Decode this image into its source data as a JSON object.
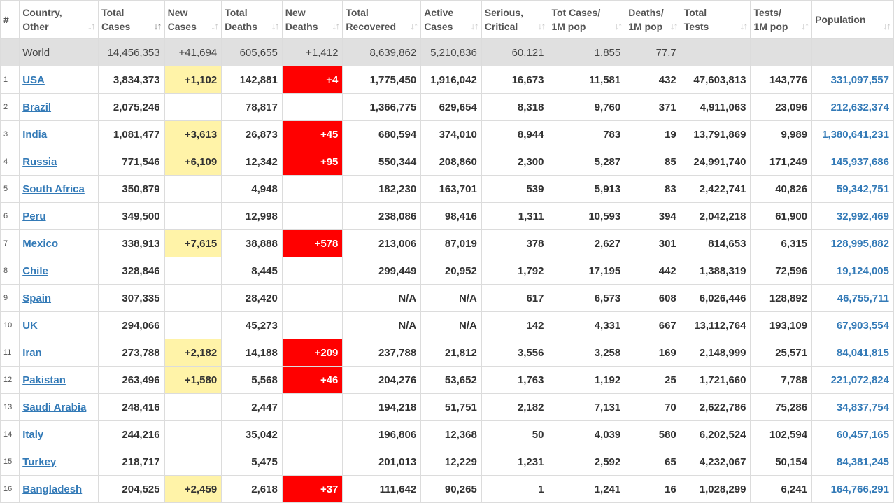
{
  "headers": [
    {
      "line1": "#",
      "line2": "",
      "sort": ""
    },
    {
      "line1": "Country,",
      "line2": "Other",
      "sort": "↓↑"
    },
    {
      "line1": "Total",
      "line2": "Cases",
      "sort": "↓↑"
    },
    {
      "line1": "New",
      "line2": "Cases",
      "sort": "↓↑"
    },
    {
      "line1": "Total",
      "line2": "Deaths",
      "sort": "↓↑"
    },
    {
      "line1": "New",
      "line2": "Deaths",
      "sort": "↓↑"
    },
    {
      "line1": "Total",
      "line2": "Recovered",
      "sort": "↓↑"
    },
    {
      "line1": "Active",
      "line2": "Cases",
      "sort": "↓↑"
    },
    {
      "line1": "Serious,",
      "line2": "Critical",
      "sort": "↓↑"
    },
    {
      "line1": "Tot Cases/",
      "line2": "1M pop",
      "sort": "↓↑"
    },
    {
      "line1": "Deaths/",
      "line2": "1M pop",
      "sort": "↓↑"
    },
    {
      "line1": "Total",
      "line2": "Tests",
      "sort": "↓↑"
    },
    {
      "line1": "Tests/",
      "line2": "1M pop",
      "sort": "↓↑"
    },
    {
      "line1": "Population",
      "line2": "",
      "sort": "↓↑"
    }
  ],
  "world": {
    "name": "World",
    "total_cases": "14,456,353",
    "new_cases": "+41,694",
    "total_deaths": "605,655",
    "new_deaths": "+1,412",
    "total_recovered": "8,639,862",
    "active_cases": "5,210,836",
    "serious": "60,121",
    "cases_per_1m": "1,855",
    "deaths_per_1m": "77.7",
    "total_tests": "",
    "tests_per_1m": "",
    "population": ""
  },
  "rows": [
    {
      "rank": "1",
      "country": "USA",
      "total_cases": "3,834,373",
      "new_cases": "+1,102",
      "total_deaths": "142,881",
      "new_deaths": "+4",
      "total_recovered": "1,775,450",
      "active_cases": "1,916,042",
      "serious": "16,673",
      "cases_per_1m": "11,581",
      "deaths_per_1m": "432",
      "total_tests": "47,603,813",
      "tests_per_1m": "143,776",
      "population": "331,097,557"
    },
    {
      "rank": "2",
      "country": "Brazil",
      "total_cases": "2,075,246",
      "new_cases": "",
      "total_deaths": "78,817",
      "new_deaths": "",
      "total_recovered": "1,366,775",
      "active_cases": "629,654",
      "serious": "8,318",
      "cases_per_1m": "9,760",
      "deaths_per_1m": "371",
      "total_tests": "4,911,063",
      "tests_per_1m": "23,096",
      "population": "212,632,374"
    },
    {
      "rank": "3",
      "country": "India",
      "total_cases": "1,081,477",
      "new_cases": "+3,613",
      "total_deaths": "26,873",
      "new_deaths": "+45",
      "total_recovered": "680,594",
      "active_cases": "374,010",
      "serious": "8,944",
      "cases_per_1m": "783",
      "deaths_per_1m": "19",
      "total_tests": "13,791,869",
      "tests_per_1m": "9,989",
      "population": "1,380,641,231"
    },
    {
      "rank": "4",
      "country": "Russia",
      "total_cases": "771,546",
      "new_cases": "+6,109",
      "total_deaths": "12,342",
      "new_deaths": "+95",
      "total_recovered": "550,344",
      "active_cases": "208,860",
      "serious": "2,300",
      "cases_per_1m": "5,287",
      "deaths_per_1m": "85",
      "total_tests": "24,991,740",
      "tests_per_1m": "171,249",
      "population": "145,937,686"
    },
    {
      "rank": "5",
      "country": "South Africa",
      "total_cases": "350,879",
      "new_cases": "",
      "total_deaths": "4,948",
      "new_deaths": "",
      "total_recovered": "182,230",
      "active_cases": "163,701",
      "serious": "539",
      "cases_per_1m": "5,913",
      "deaths_per_1m": "83",
      "total_tests": "2,422,741",
      "tests_per_1m": "40,826",
      "population": "59,342,751"
    },
    {
      "rank": "6",
      "country": "Peru",
      "total_cases": "349,500",
      "new_cases": "",
      "total_deaths": "12,998",
      "new_deaths": "",
      "total_recovered": "238,086",
      "active_cases": "98,416",
      "serious": "1,311",
      "cases_per_1m": "10,593",
      "deaths_per_1m": "394",
      "total_tests": "2,042,218",
      "tests_per_1m": "61,900",
      "population": "32,992,469"
    },
    {
      "rank": "7",
      "country": "Mexico",
      "total_cases": "338,913",
      "new_cases": "+7,615",
      "total_deaths": "38,888",
      "new_deaths": "+578",
      "total_recovered": "213,006",
      "active_cases": "87,019",
      "serious": "378",
      "cases_per_1m": "2,627",
      "deaths_per_1m": "301",
      "total_tests": "814,653",
      "tests_per_1m": "6,315",
      "population": "128,995,882"
    },
    {
      "rank": "8",
      "country": "Chile",
      "total_cases": "328,846",
      "new_cases": "",
      "total_deaths": "8,445",
      "new_deaths": "",
      "total_recovered": "299,449",
      "active_cases": "20,952",
      "serious": "1,792",
      "cases_per_1m": "17,195",
      "deaths_per_1m": "442",
      "total_tests": "1,388,319",
      "tests_per_1m": "72,596",
      "population": "19,124,005"
    },
    {
      "rank": "9",
      "country": "Spain",
      "total_cases": "307,335",
      "new_cases": "",
      "total_deaths": "28,420",
      "new_deaths": "",
      "total_recovered": "N/A",
      "active_cases": "N/A",
      "serious": "617",
      "cases_per_1m": "6,573",
      "deaths_per_1m": "608",
      "total_tests": "6,026,446",
      "tests_per_1m": "128,892",
      "population": "46,755,711"
    },
    {
      "rank": "10",
      "country": "UK",
      "total_cases": "294,066",
      "new_cases": "",
      "total_deaths": "45,273",
      "new_deaths": "",
      "total_recovered": "N/A",
      "active_cases": "N/A",
      "serious": "142",
      "cases_per_1m": "4,331",
      "deaths_per_1m": "667",
      "total_tests": "13,112,764",
      "tests_per_1m": "193,109",
      "population": "67,903,554"
    },
    {
      "rank": "11",
      "country": "Iran",
      "total_cases": "273,788",
      "new_cases": "+2,182",
      "total_deaths": "14,188",
      "new_deaths": "+209",
      "total_recovered": "237,788",
      "active_cases": "21,812",
      "serious": "3,556",
      "cases_per_1m": "3,258",
      "deaths_per_1m": "169",
      "total_tests": "2,148,999",
      "tests_per_1m": "25,571",
      "population": "84,041,815"
    },
    {
      "rank": "12",
      "country": "Pakistan",
      "total_cases": "263,496",
      "new_cases": "+1,580",
      "total_deaths": "5,568",
      "new_deaths": "+46",
      "total_recovered": "204,276",
      "active_cases": "53,652",
      "serious": "1,763",
      "cases_per_1m": "1,192",
      "deaths_per_1m": "25",
      "total_tests": "1,721,660",
      "tests_per_1m": "7,788",
      "population": "221,072,824"
    },
    {
      "rank": "13",
      "country": "Saudi Arabia",
      "total_cases": "248,416",
      "new_cases": "",
      "total_deaths": "2,447",
      "new_deaths": "",
      "total_recovered": "194,218",
      "active_cases": "51,751",
      "serious": "2,182",
      "cases_per_1m": "7,131",
      "deaths_per_1m": "70",
      "total_tests": "2,622,786",
      "tests_per_1m": "75,286",
      "population": "34,837,754"
    },
    {
      "rank": "14",
      "country": "Italy",
      "total_cases": "244,216",
      "new_cases": "",
      "total_deaths": "35,042",
      "new_deaths": "",
      "total_recovered": "196,806",
      "active_cases": "12,368",
      "serious": "50",
      "cases_per_1m": "4,039",
      "deaths_per_1m": "580",
      "total_tests": "6,202,524",
      "tests_per_1m": "102,594",
      "population": "60,457,165"
    },
    {
      "rank": "15",
      "country": "Turkey",
      "total_cases": "218,717",
      "new_cases": "",
      "total_deaths": "5,475",
      "new_deaths": "",
      "total_recovered": "201,013",
      "active_cases": "12,229",
      "serious": "1,231",
      "cases_per_1m": "2,592",
      "deaths_per_1m": "65",
      "total_tests": "4,232,067",
      "tests_per_1m": "50,154",
      "population": "84,381,245"
    },
    {
      "rank": "16",
      "country": "Bangladesh",
      "total_cases": "204,525",
      "new_cases": "+2,459",
      "total_deaths": "2,618",
      "new_deaths": "+37",
      "total_recovered": "111,642",
      "active_cases": "90,265",
      "serious": "1",
      "cases_per_1m": "1,241",
      "deaths_per_1m": "16",
      "total_tests": "1,028,299",
      "tests_per_1m": "6,241",
      "population": "164,766,291"
    }
  ],
  "colors": {
    "new_cases_highlight": "#fff3a8",
    "new_deaths_highlight": "#ff0000",
    "link": "#337ab7",
    "world_row_bg": "#e0e0e0"
  },
  "icons": {
    "sort": "sort-arrows-icon",
    "sort_active": "sort-desc-active-icon"
  }
}
